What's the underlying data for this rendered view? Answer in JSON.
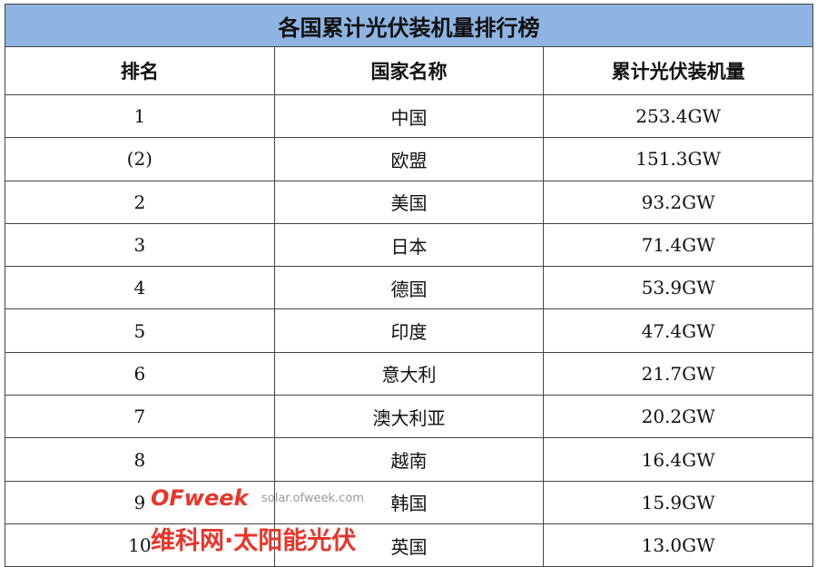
{
  "title": "各国累计光伏装机量排行榜",
  "headers": [
    "排名",
    "国家名称",
    "累计光伏装机量"
  ],
  "rows": [
    {
      "rank": "1",
      "country": "中国",
      "capacity": "253.4GW"
    },
    {
      "rank": "(2)",
      "country": "欧盟",
      "capacity": "151.3GW"
    },
    {
      "rank": "2",
      "country": "美国",
      "capacity": "93.2GW"
    },
    {
      "rank": "3",
      "country": "日本",
      "capacity": "71.4GW"
    },
    {
      "rank": "4",
      "country": "德国",
      "capacity": "53.9GW"
    },
    {
      "rank": "5",
      "country": "印度",
      "capacity": "47.4GW"
    },
    {
      "rank": "6",
      "country": "意大利",
      "capacity": "21.7GW"
    },
    {
      "rank": "7",
      "country": "澳大利亚",
      "capacity": "20.2GW"
    },
    {
      "rank": "8",
      "country": "越南",
      "capacity": "16.4GW"
    },
    {
      "rank": "9",
      "country": "韩国",
      "capacity": "15.9GW"
    },
    {
      "rank": "10",
      "country": "英国",
      "capacity": "13.0GW"
    }
  ],
  "watermark": {
    "logo": "OFweek",
    "url": "solar.ofweek.com",
    "name": "维科网·太阳能光伏"
  },
  "colors": {
    "title_bg": "#8db4e2",
    "watermark": "#e8352a"
  }
}
